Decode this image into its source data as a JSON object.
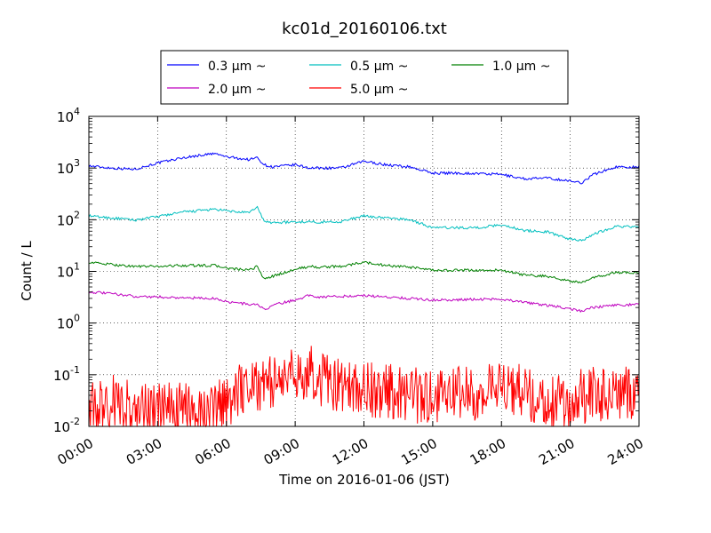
{
  "chart_data": {
    "type": "line",
    "title": "kc01d_20160106.txt",
    "xlabel": "Time on 2016-01-06 (JST)",
    "ylabel": "Count / L",
    "yscale": "log",
    "xlim": [
      "00:00",
      "24:00"
    ],
    "ylim": [
      0.01,
      10000
    ],
    "grid": true,
    "legend_position": "top",
    "x_ticks": [
      "00:00",
      "03:00",
      "06:00",
      "09:00",
      "12:00",
      "15:00",
      "18:00",
      "21:00",
      "24:00"
    ],
    "y_ticks": [
      {
        "base": "10",
        "exp": "-2",
        "value": 0.01
      },
      {
        "base": "10",
        "exp": "-1",
        "value": 0.1
      },
      {
        "base": "10",
        "exp": "0",
        "value": 1
      },
      {
        "base": "10",
        "exp": "1",
        "value": 10
      },
      {
        "base": "10",
        "exp": "2",
        "value": 100
      },
      {
        "base": "10",
        "exp": "3",
        "value": 1000
      },
      {
        "base": "10",
        "exp": "4",
        "value": 10000
      }
    ],
    "x": [
      "00:00",
      "01:00",
      "02:00",
      "03:00",
      "04:00",
      "05:00",
      "05:30",
      "06:00",
      "07:00",
      "07:20",
      "07:40",
      "08:00",
      "09:00",
      "09:40",
      "10:00",
      "11:00",
      "12:00",
      "13:00",
      "14:00",
      "15:00",
      "16:00",
      "17:00",
      "18:00",
      "19:00",
      "20:00",
      "21:00",
      "21:30",
      "22:00",
      "23:00",
      "24:00"
    ],
    "series": [
      {
        "name": "0.3 μm ~",
        "color": "#0000ff",
        "values": [
          1100,
          1000,
          950,
          1250,
          1550,
          1800,
          1900,
          1650,
          1450,
          1600,
          1150,
          1050,
          1150,
          1000,
          1000,
          1000,
          1350,
          1150,
          1050,
          800,
          800,
          780,
          750,
          620,
          640,
          560,
          520,
          750,
          1050,
          1050
        ]
      },
      {
        "name": "0.5 μm ~",
        "color": "#00bfbf",
        "values": [
          118,
          108,
          98,
          115,
          138,
          153,
          158,
          148,
          135,
          180,
          90,
          88,
          90,
          92,
          90,
          92,
          118,
          108,
          100,
          70,
          70,
          70,
          80,
          62,
          58,
          42,
          40,
          52,
          75,
          72
        ]
      },
      {
        "name": "1.0 μm ~",
        "color": "#008000",
        "values": [
          15,
          13.5,
          12.5,
          12.5,
          13,
          13,
          13,
          11.5,
          10.5,
          12.5,
          7,
          8,
          11,
          12.5,
          12,
          12.5,
          15,
          13,
          12,
          10.5,
          10.5,
          10.5,
          10.5,
          8.5,
          8,
          6.5,
          6,
          7.5,
          9.5,
          9.5
        ]
      },
      {
        "name": "2.0 μm ~",
        "color": "#bf00bf",
        "values": [
          4,
          3.7,
          3.3,
          3.2,
          3.1,
          3.0,
          3.0,
          2.6,
          2.3,
          2.3,
          1.8,
          2.2,
          2.8,
          3.5,
          3.2,
          3.3,
          3.4,
          3.2,
          3.0,
          2.8,
          2.8,
          2.9,
          2.9,
          2.5,
          2.2,
          1.9,
          1.7,
          2.0,
          2.2,
          2.3
        ]
      },
      {
        "name": "5.0 μm ~",
        "color": "#ff0000",
        "values": [
          0.02,
          0.03,
          0.02,
          0.02,
          0.02,
          0.02,
          0.02,
          0.03,
          0.08,
          0.07,
          0.06,
          0.07,
          0.1,
          0.12,
          0.08,
          0.06,
          0.05,
          0.05,
          0.04,
          0.04,
          0.05,
          0.04,
          0.06,
          0.05,
          0.03,
          0.03,
          0.04,
          0.04,
          0.05,
          0.04
        ]
      }
    ]
  }
}
